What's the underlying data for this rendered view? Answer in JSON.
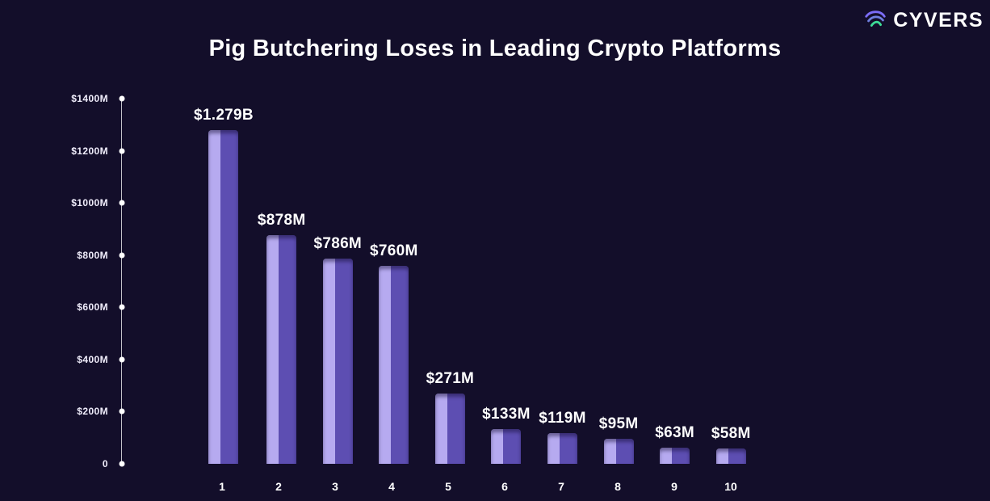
{
  "logo": {
    "text": "CYVERS"
  },
  "title": "Pig Butchering Loses in Leading Crypto Platforms",
  "colors": {
    "background": "#130e2a",
    "bar_light": "#b6aaf0",
    "bar_dark": "#5d4eb2",
    "text": "#ffffff",
    "logo_purple": "#7b6cf6",
    "logo_green": "#3ddc97"
  },
  "chart_data": {
    "type": "bar",
    "title": "Pig Butchering Loses in Leading Crypto Platforms",
    "categories": [
      "1",
      "2",
      "3",
      "4",
      "5",
      "6",
      "7",
      "8",
      "9",
      "10"
    ],
    "values": [
      1279,
      878,
      786,
      760,
      271,
      133,
      119,
      95,
      63,
      58
    ],
    "value_labels": [
      "$1.279B",
      "$878M",
      "$786M",
      "$760M",
      "$271M",
      "$133M",
      "$119M",
      "$95M",
      "$63M",
      "$58M"
    ],
    "y_ticks": [
      "$1400M",
      "$1200M",
      "$1000M",
      "$800M",
      "$600M",
      "$400M",
      "$200M",
      "0"
    ],
    "ylim": [
      0,
      1400
    ],
    "xlabel": "",
    "ylabel": "",
    "grid": false,
    "legend": false,
    "units": "USD millions"
  }
}
